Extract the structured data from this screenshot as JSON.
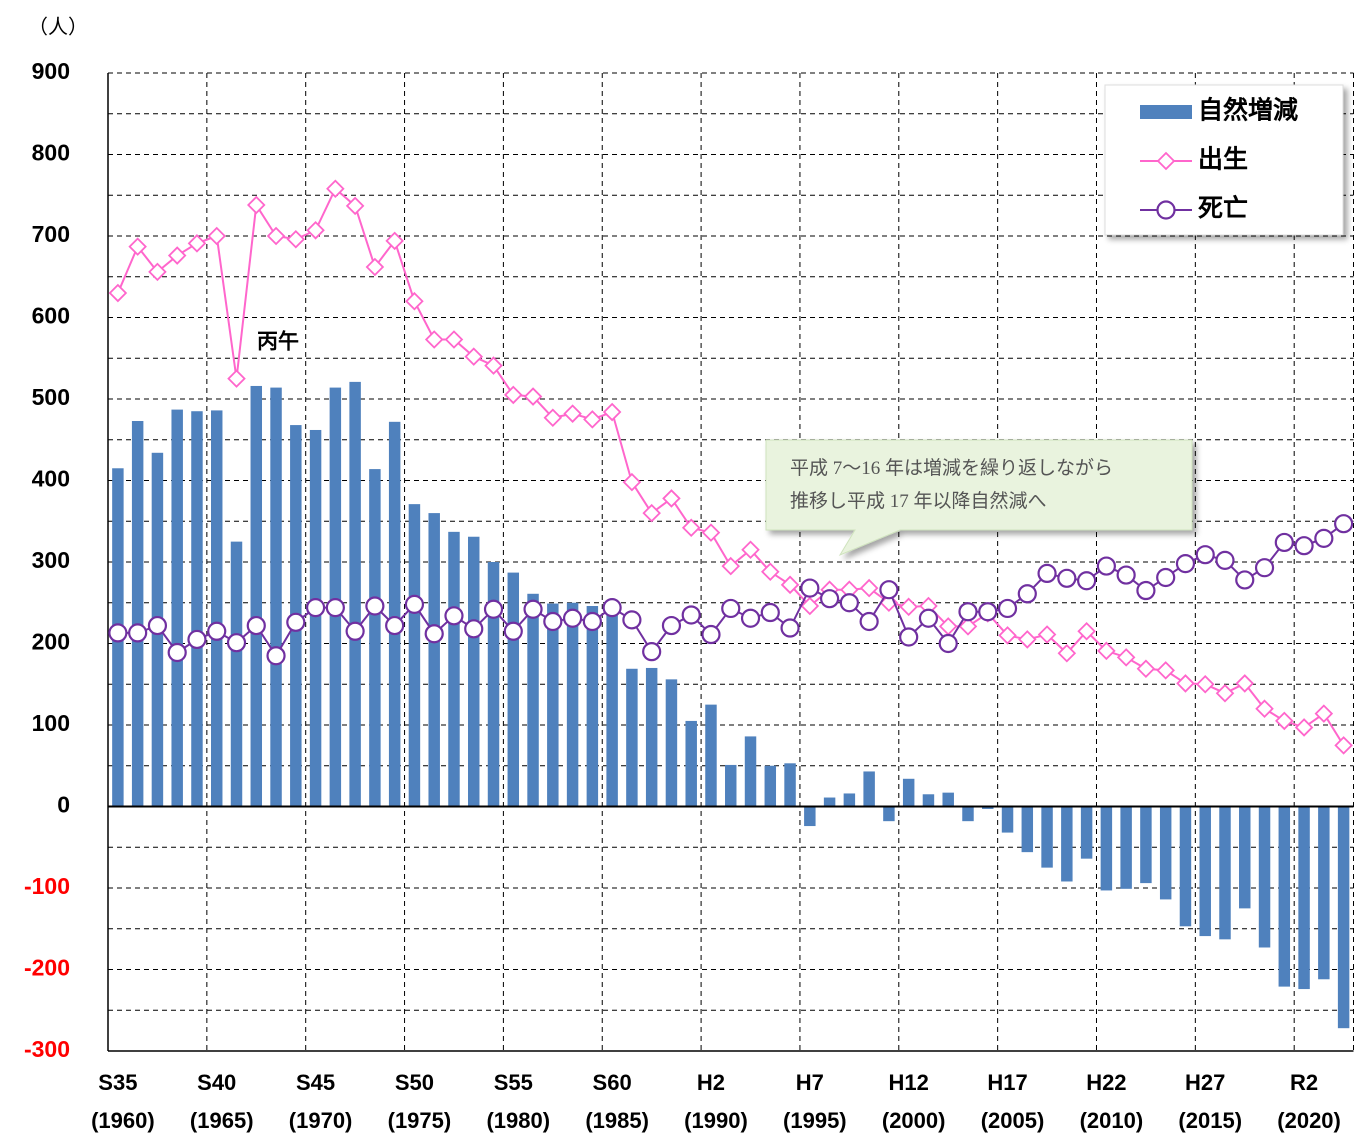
{
  "chart_data": {
    "type": "combo",
    "unit_label": "（人）",
    "categories": [
      "S35\n(1960)",
      null,
      null,
      null,
      null,
      "S40\n(1965)",
      null,
      null,
      null,
      null,
      "S45\n(1970)",
      null,
      null,
      null,
      null,
      "S50\n(1975)",
      null,
      null,
      null,
      null,
      "S55\n(1980)",
      null,
      null,
      null,
      null,
      "S60\n(1985)",
      null,
      null,
      null,
      null,
      "H2\n(1990)",
      null,
      null,
      null,
      null,
      "H7\n(1995)",
      null,
      null,
      null,
      null,
      "H12\n(2000)",
      null,
      null,
      null,
      null,
      "H17\n(2005)",
      null,
      null,
      null,
      null,
      "H22\n(2010)",
      null,
      null,
      null,
      null,
      "H27\n(2015)",
      null,
      null,
      null,
      null,
      "R2\n(2020)",
      null,
      null
    ],
    "series": [
      {
        "name": "自然増減",
        "type": "bar",
        "color": "#4f81bd",
        "values": [
          415,
          473,
          434,
          487,
          485,
          486,
          325,
          516,
          514,
          468,
          462,
          514,
          521,
          414,
          472,
          371,
          360,
          337,
          331,
          300,
          287,
          261,
          249,
          250,
          246,
          239,
          169,
          170,
          156,
          105,
          125,
          51,
          86,
          50,
          53,
          -24,
          11,
          16,
          43,
          -18,
          34,
          15,
          17,
          -18,
          -3,
          -32,
          -56,
          -75,
          -92,
          -64,
          -103,
          -101,
          -94,
          -114,
          -147,
          -159,
          -163,
          -125,
          -173,
          -221,
          -224,
          -212,
          -272
        ]
      },
      {
        "name": "出生",
        "type": "line",
        "marker": "diamond",
        "color": "#ff66cc",
        "values": [
          630,
          687,
          656,
          676,
          691,
          700,
          525,
          738,
          700,
          696,
          707,
          758,
          737,
          662,
          694,
          620,
          573,
          573,
          552,
          541,
          505,
          503,
          477,
          482,
          475,
          484,
          398,
          360,
          378,
          342,
          336,
          295,
          315,
          288,
          272,
          246,
          266,
          266,
          268,
          250,
          245,
          246,
          221,
          221,
          237,
          210,
          205,
          211,
          188,
          215,
          191,
          183,
          169,
          167,
          151,
          150,
          139,
          151,
          120,
          105,
          97,
          114,
          75
        ]
      },
      {
        "name": "死亡",
        "type": "line",
        "marker": "circle",
        "color": "#7030a0",
        "values": [
          213,
          213,
          222,
          189,
          205,
          215,
          201,
          222,
          185,
          226,
          244,
          244,
          215,
          246,
          222,
          248,
          212,
          234,
          218,
          242,
          215,
          242,
          227,
          231,
          227,
          244,
          229,
          190,
          222,
          235,
          211,
          243,
          231,
          238,
          219,
          268,
          255,
          250,
          227,
          266,
          208,
          231,
          200,
          239,
          239,
          243,
          261,
          286,
          280,
          277,
          295,
          284,
          265,
          281,
          298,
          309,
          302,
          278,
          293,
          324,
          320,
          329,
          347
        ]
      }
    ],
    "ylim": [
      -300,
      900
    ],
    "yticks": [
      -300,
      -200,
      -100,
      0,
      100,
      200,
      300,
      400,
      500,
      600,
      700,
      800,
      900
    ],
    "yminorticks": [
      -250,
      -150,
      -50,
      50,
      150,
      250,
      350,
      450,
      550,
      650,
      750,
      850
    ],
    "negative_tick_color": "#ff0000",
    "grid": true,
    "legend": "upper right",
    "annotations": [
      {
        "text": "丙午"
      },
      {
        "text": "平成 7～16 年は増減を繰り返しながら\n推移し平成 17 年以降自然減へ"
      }
    ]
  }
}
